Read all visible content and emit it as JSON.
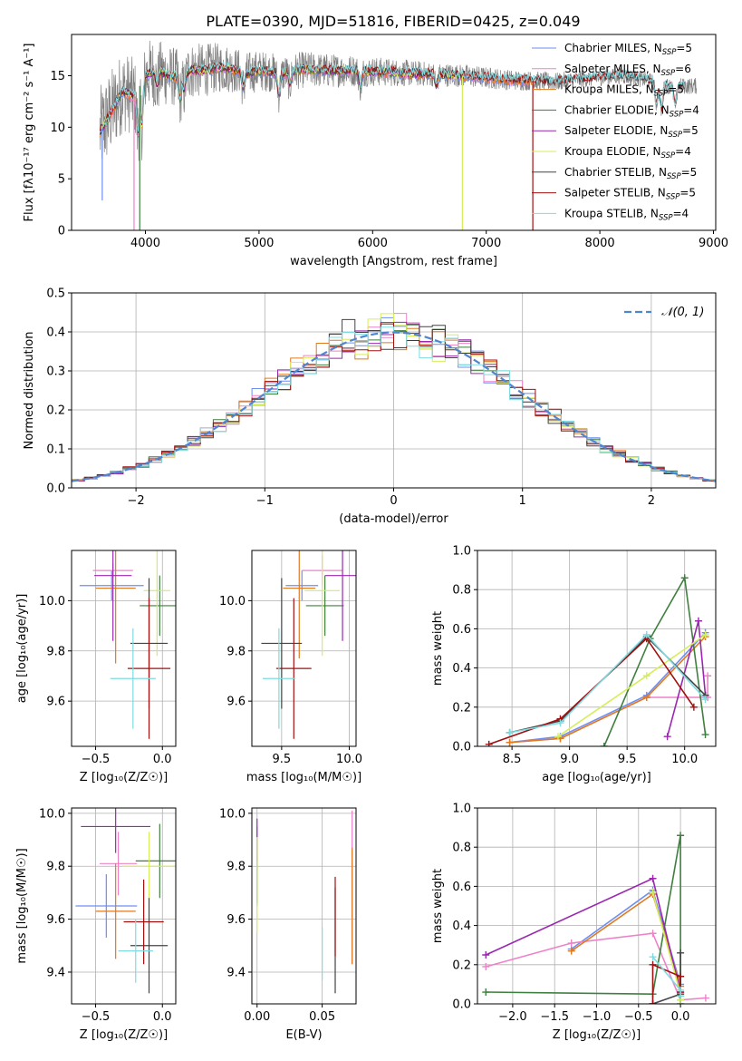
{
  "figure_title": "PLATE=0390, MJD=51816, FIBERID=0425, z=0.049",
  "palette": {
    "Chabrier MILES": "#6f8ef2",
    "Salpeter MILES": "#ee82c8",
    "Kroupa MILES": "#e07a1f",
    "Chabrier ELODIE": "#3f7f3f",
    "Salpeter ELODIE": "#9b27b0",
    "Kroupa ELODIE": "#d6ee5a",
    "Chabrier STELIB": "#444444",
    "Salpeter STELIB": "#a01010",
    "Kroupa STELIB": "#7fdbe0"
  },
  "chart_data": [
    {
      "id": "spectrum",
      "type": "line",
      "title": "PLATE=0390, MJD=51816, FIBERID=0425, z=0.049",
      "xlabel": "wavelength [Angstrom, rest frame]",
      "ylabel": "Flux [fλ10⁻¹⁷ erg cm⁻² s⁻¹ A⁻¹]",
      "xlim": [
        3350,
        9020
      ],
      "ylim": [
        0,
        19
      ],
      "xticks": [
        4000,
        5000,
        6000,
        7000,
        8000,
        9000
      ],
      "yticks": [
        0,
        5,
        10,
        15
      ],
      "grid": false,
      "legend_position": "right",
      "legend": [
        {
          "label": "Chabrier MILES, N",
          "sub": "SSP",
          "tail": "=5"
        },
        {
          "label": "Salpeter MILES, N",
          "sub": "SSP",
          "tail": "=6"
        },
        {
          "label": "Kroupa MILES, N",
          "sub": "SSP",
          "tail": "=5"
        },
        {
          "label": "Chabrier ELODIE, N",
          "sub": "SSP",
          "tail": "=4"
        },
        {
          "label": "Salpeter ELODIE, N",
          "sub": "SSP",
          "tail": "=5"
        },
        {
          "label": "Kroupa ELODIE, N",
          "sub": "SSP",
          "tail": "=4"
        },
        {
          "label": "Chabrier STELIB, N",
          "sub": "SSP",
          "tail": "=5"
        },
        {
          "label": "Salpeter STELIB, N",
          "sub": "SSP",
          "tail": "=5"
        },
        {
          "label": "Kroupa STELIB, N",
          "sub": "SSP",
          "tail": "=4"
        }
      ],
      "continuum": [
        [
          3600,
          9.5
        ],
        [
          3700,
          11.5
        ],
        [
          3800,
          13.5
        ],
        [
          3900,
          13.0
        ],
        [
          4000,
          15.0
        ],
        [
          4100,
          15.5
        ],
        [
          4200,
          15.0
        ],
        [
          4300,
          14.8
        ],
        [
          4400,
          15.5
        ],
        [
          4500,
          15.5
        ],
        [
          4600,
          15.7
        ],
        [
          4700,
          15.8
        ],
        [
          4800,
          15.5
        ],
        [
          4900,
          15.2
        ],
        [
          5000,
          15.5
        ],
        [
          5200,
          15.2
        ],
        [
          5400,
          15.6
        ],
        [
          5600,
          15.5
        ],
        [
          5800,
          15.5
        ],
        [
          6000,
          15.4
        ],
        [
          6200,
          15.3
        ],
        [
          6400,
          15.2
        ],
        [
          6600,
          15.1
        ],
        [
          6800,
          15.0
        ],
        [
          7000,
          14.8
        ],
        [
          7200,
          14.6
        ],
        [
          7400,
          14.5
        ],
        [
          7600,
          14.4
        ],
        [
          7800,
          14.6
        ],
        [
          8000,
          14.8
        ],
        [
          8200,
          15.0
        ],
        [
          8400,
          14.6
        ],
        [
          8600,
          14.0
        ],
        [
          8800,
          14.0
        ]
      ],
      "absorption_lines": [
        [
          3934,
          4.0
        ],
        [
          3969,
          4.0
        ],
        [
          4102,
          1.5
        ],
        [
          4304,
          2.0
        ],
        [
          4341,
          1.5
        ],
        [
          4861,
          1.5
        ],
        [
          5175,
          2.0
        ],
        [
          5270,
          1.2
        ],
        [
          5893,
          1.5
        ],
        [
          6563,
          1.0
        ],
        [
          8498,
          2.0
        ],
        [
          8542,
          2.5
        ],
        [
          8662,
          2.0
        ]
      ],
      "spikes": [
        [
          3900,
          -17
        ],
        [
          3950,
          -16
        ],
        [
          6790,
          -15
        ],
        [
          7410,
          -15
        ],
        [
          3620,
          -7
        ]
      ],
      "noise_amplitude": [
        [
          3600,
          4.5
        ],
        [
          4200,
          3.0
        ],
        [
          5000,
          2.0
        ],
        [
          6500,
          1.2
        ],
        [
          8000,
          0.8
        ],
        [
          8900,
          0.8
        ]
      ]
    },
    {
      "id": "residuals",
      "type": "histogram",
      "xlabel": "(data-model)/error",
      "ylabel": "Normed distribution",
      "xlim": [
        -2.5,
        2.5
      ],
      "ylim": [
        0,
        0.5
      ],
      "xticks": [
        -2,
        -1,
        0,
        1,
        2
      ],
      "yticks": [
        0,
        0.1,
        0.2,
        0.3,
        0.4,
        0.5
      ],
      "grid": true,
      "legend_position": "top-right",
      "reference_curve": {
        "label": "𝒩(0, 1)",
        "mean": 0,
        "sigma": 1
      },
      "bin_width": 0.1
    },
    {
      "id": "age-vs-metallicity",
      "type": "scatter",
      "xlabel": "Z [log₁₀(Z/Z☉)]",
      "ylabel": "age  [log₁₀(age/yr)]",
      "xlim": [
        -0.68,
        0.1
      ],
      "ylim": [
        9.42,
        10.2
      ],
      "xticks": [
        -0.5,
        0.0
      ],
      "yticks": [
        9.6,
        9.8,
        10.0
      ],
      "grid": true,
      "points": [
        {
          "model": "Chabrier MILES",
          "x": -0.38,
          "y": 10.06,
          "xerr": 0.24,
          "yerr": 0.06
        },
        {
          "model": "Salpeter MILES",
          "x": -0.37,
          "y": 10.12,
          "xerr": 0.15,
          "yerr": 0.03
        },
        {
          "model": "Kroupa MILES",
          "x": -0.35,
          "y": 10.05,
          "xerr": 0.15,
          "yerr": 0.3
        },
        {
          "model": "Chabrier ELODIE",
          "x": -0.02,
          "y": 9.98,
          "xerr": 0.15,
          "yerr": 0.12
        },
        {
          "model": "Salpeter ELODIE",
          "x": -0.37,
          "y": 10.1,
          "xerr": 0.14,
          "yerr": 0.26
        },
        {
          "model": "Kroupa ELODIE",
          "x": -0.04,
          "y": 10.04,
          "xerr": 0.1,
          "yerr": 0.26
        },
        {
          "model": "Chabrier STELIB",
          "x": -0.1,
          "y": 9.83,
          "xerr": 0.14,
          "yerr": 0.26
        },
        {
          "model": "Salpeter STELIB",
          "x": -0.1,
          "y": 9.73,
          "xerr": 0.16,
          "yerr": 0.28
        },
        {
          "model": "Kroupa STELIB",
          "x": -0.22,
          "y": 9.69,
          "xerr": 0.17,
          "yerr": 0.2
        }
      ]
    },
    {
      "id": "age-vs-mass",
      "type": "scatter",
      "xlabel": "mass [log₁₀(M/M☉)]",
      "ylabel": "",
      "xlim": [
        9.28,
        10.05
      ],
      "ylim": [
        9.42,
        10.2
      ],
      "xticks": [
        9.5,
        10.0
      ],
      "yticks": [
        9.6,
        9.8,
        10.0
      ],
      "grid": true,
      "points": [
        {
          "model": "Chabrier MILES",
          "x": 9.65,
          "y": 10.06,
          "xerr": 0.12,
          "yerr": 0.06
        },
        {
          "model": "Salpeter MILES",
          "x": 9.8,
          "y": 10.12,
          "xerr": 0.15,
          "yerr": 0.06
        },
        {
          "model": "Kroupa MILES",
          "x": 9.63,
          "y": 10.05,
          "xerr": 0.12,
          "yerr": 0.28
        },
        {
          "model": "Chabrier ELODIE",
          "x": 9.82,
          "y": 9.98,
          "xerr": 0.14,
          "yerr": 0.12
        },
        {
          "model": "Salpeter ELODIE",
          "x": 9.95,
          "y": 10.1,
          "xerr": 0.13,
          "yerr": 0.26
        },
        {
          "model": "Kroupa ELODIE",
          "x": 9.8,
          "y": 10.04,
          "xerr": 0.13,
          "yerr": 0.26
        },
        {
          "model": "Chabrier STELIB",
          "x": 9.5,
          "y": 9.83,
          "xerr": 0.15,
          "yerr": 0.26
        },
        {
          "model": "Salpeter STELIB",
          "x": 9.59,
          "y": 9.73,
          "xerr": 0.13,
          "yerr": 0.28
        },
        {
          "model": "Kroupa STELIB",
          "x": 9.48,
          "y": 9.69,
          "xerr": 0.12,
          "yerr": 0.2
        }
      ]
    },
    {
      "id": "mass-weight-vs-age",
      "type": "line",
      "xlabel": "age  [log₁₀(age/yr)]",
      "ylabel": "mass weight",
      "xlim": [
        8.2,
        10.27
      ],
      "ylim": [
        0,
        1.0
      ],
      "xticks": [
        8.5,
        9.0,
        9.5,
        10.0
      ],
      "yticks": [
        0.0,
        0.2,
        0.4,
        0.6,
        0.8,
        1.0
      ],
      "grid": true,
      "series": [
        {
          "model": "Chabrier MILES",
          "x": [
            8.48,
            8.92,
            9.67,
            10.18
          ],
          "y": [
            0.02,
            0.05,
            0.26,
            0.58
          ]
        },
        {
          "model": "Salpeter MILES",
          "x": [
            8.48,
            8.92,
            9.67,
            10.2,
            10.2
          ],
          "y": [
            0.02,
            0.04,
            0.25,
            0.25,
            0.36
          ]
        },
        {
          "model": "Kroupa MILES",
          "x": [
            8.48,
            8.92,
            9.67,
            10.18
          ],
          "y": [
            0.02,
            0.04,
            0.25,
            0.56
          ]
        },
        {
          "model": "Chabrier ELODIE",
          "x": [
            9.3,
            9.7,
            10.0,
            10.18
          ],
          "y": [
            0.0,
            0.55,
            0.86,
            0.06
          ]
        },
        {
          "model": "Salpeter ELODIE",
          "x": [
            9.85,
            10.12,
            10.18
          ],
          "y": [
            0.05,
            0.64,
            0.26
          ]
        },
        {
          "model": "Kroupa ELODIE",
          "x": [
            8.9,
            9.67,
            10.18
          ],
          "y": [
            0.05,
            0.36,
            0.57
          ]
        },
        {
          "model": "Chabrier STELIB",
          "x": [
            8.48,
            8.92,
            9.67,
            10.18
          ],
          "y": [
            0.07,
            0.13,
            0.56,
            0.26
          ]
        },
        {
          "model": "Salpeter STELIB",
          "x": [
            8.3,
            8.92,
            9.67,
            10.08
          ],
          "y": [
            0.01,
            0.14,
            0.55,
            0.2
          ]
        },
        {
          "model": "Kroupa STELIB",
          "x": [
            8.48,
            8.92,
            9.67,
            10.18
          ],
          "y": [
            0.07,
            0.12,
            0.57,
            0.24
          ]
        }
      ]
    },
    {
      "id": "mass-vs-metallicity",
      "type": "scatter",
      "xlabel": "Z [log₁₀(Z/Z☉)]",
      "ylabel": "mass [log₁₀(M/M☉)]",
      "xlim": [
        -0.68,
        0.1
      ],
      "ylim": [
        9.28,
        10.02
      ],
      "xticks": [
        -0.5,
        0.0
      ],
      "yticks": [
        9.4,
        9.6,
        9.8,
        10.0
      ],
      "grid": true,
      "points": [
        {
          "model": "Chabrier MILES",
          "x": -0.42,
          "y": 9.65,
          "xerr": 0.23,
          "yerr": 0.12
        },
        {
          "model": "Salpeter MILES",
          "x": -0.33,
          "y": 9.81,
          "xerr": 0.14,
          "yerr": 0.12
        },
        {
          "model": "Kroupa MILES",
          "x": -0.35,
          "y": 9.63,
          "xerr": 0.15,
          "yerr": 0.18
        },
        {
          "model": "Chabrier ELODIE",
          "x": -0.02,
          "y": 9.82,
          "xerr": 0.18,
          "yerr": 0.14
        },
        {
          "model": "Salpeter ELODIE",
          "x": -0.35,
          "y": 9.95,
          "xerr": 0.26,
          "yerr": 0.1
        },
        {
          "model": "Kroupa ELODIE",
          "x": -0.1,
          "y": 9.8,
          "xerr": 0.2,
          "yerr": 0.13
        },
        {
          "model": "Chabrier STELIB",
          "x": -0.1,
          "y": 9.5,
          "xerr": 0.14,
          "yerr": 0.18
        },
        {
          "model": "Salpeter STELIB",
          "x": -0.14,
          "y": 9.59,
          "xerr": 0.15,
          "yerr": 0.16
        },
        {
          "model": "Kroupa STELIB",
          "x": -0.2,
          "y": 9.48,
          "xerr": 0.13,
          "yerr": 0.12
        }
      ]
    },
    {
      "id": "mass-vs-ebv",
      "type": "scatter",
      "xlabel": "E(B-V)",
      "ylabel": "",
      "xlim": [
        -0.004,
        0.076
      ],
      "ylim": [
        9.28,
        10.02
      ],
      "xticks": [
        0.0,
        0.05
      ],
      "xticklabels": [
        "0.00",
        "0.05"
      ],
      "yticks": [
        9.4,
        9.6,
        9.8,
        10.0
      ],
      "grid": true,
      "points": [
        {
          "model": "Chabrier MILES",
          "x": 0.0,
          "y": 9.8,
          "xerr": 0.0,
          "yerr": 0.15
        },
        {
          "model": "Salpeter MILES",
          "x": 0.073,
          "y": 9.72,
          "xerr": 0.0,
          "yerr": 0.29
        },
        {
          "model": "Kroupa MILES",
          "x": 0.073,
          "y": 9.65,
          "xerr": 0.0,
          "yerr": 0.22
        },
        {
          "model": "Chabrier ELODIE",
          "x": 0.0,
          "y": 9.78,
          "xerr": 0.0,
          "yerr": 0.12
        },
        {
          "model": "Salpeter ELODIE",
          "x": 0.0,
          "y": 9.9,
          "xerr": 0.0,
          "yerr": 0.08
        },
        {
          "model": "Kroupa ELODIE",
          "x": 0.0,
          "y": 9.73,
          "xerr": 0.0,
          "yerr": 0.18
        },
        {
          "model": "Chabrier STELIB",
          "x": 0.06,
          "y": 9.52,
          "xerr": 0.0,
          "yerr": 0.2
        },
        {
          "model": "Salpeter STELIB",
          "x": 0.06,
          "y": 9.61,
          "xerr": 0.0,
          "yerr": 0.15
        },
        {
          "model": "Kroupa STELIB",
          "x": 0.05,
          "y": 9.47,
          "xerr": 0.0,
          "yerr": 0.1
        }
      ]
    },
    {
      "id": "mass-weight-vs-metallicity",
      "type": "line",
      "xlabel": "Z [log₁₀(Z/Z☉)]",
      "ylabel": "mass weight",
      "xlim": [
        -2.42,
        0.42
      ],
      "ylim": [
        0,
        1.0
      ],
      "xticks": [
        -2.0,
        -1.5,
        -1.0,
        -0.5,
        0.0
      ],
      "yticks": [
        0.0,
        0.2,
        0.4,
        0.6,
        0.8,
        1.0
      ],
      "grid": true,
      "series": [
        {
          "model": "Chabrier MILES",
          "x": [
            -1.3,
            -0.33,
            0.0,
            0.0
          ],
          "y": [
            0.28,
            0.58,
            0.1,
            0.04
          ]
        },
        {
          "model": "Salpeter MILES",
          "x": [
            -2.32,
            -1.3,
            -0.33,
            0.0,
            0.3
          ],
          "y": [
            0.19,
            0.31,
            0.36,
            0.02,
            0.03
          ]
        },
        {
          "model": "Kroupa MILES",
          "x": [
            -1.3,
            -0.33,
            0.0,
            0.0
          ],
          "y": [
            0.27,
            0.56,
            0.09,
            0.02
          ]
        },
        {
          "model": "Chabrier ELODIE",
          "x": [
            -2.32,
            -0.33,
            0.0,
            0.0
          ],
          "y": [
            0.06,
            0.05,
            0.86,
            0.0
          ]
        },
        {
          "model": "Salpeter ELODIE",
          "x": [
            -2.32,
            -0.33,
            0.0
          ],
          "y": [
            0.25,
            0.64,
            0.06
          ]
        },
        {
          "model": "Kroupa ELODIE",
          "x": [
            -0.33,
            0.0,
            0.0
          ],
          "y": [
            0.57,
            0.05,
            0.02
          ]
        },
        {
          "model": "Chabrier STELIB",
          "x": [
            -0.33,
            0.0,
            0.0
          ],
          "y": [
            0.0,
            0.05,
            0.26
          ]
        },
        {
          "model": "Salpeter STELIB",
          "x": [
            -0.33,
            -0.33,
            0.0,
            0.0
          ],
          "y": [
            0.0,
            0.2,
            0.14,
            0.06
          ]
        },
        {
          "model": "Kroupa STELIB",
          "x": [
            -0.33,
            0.0,
            0.0
          ],
          "y": [
            0.24,
            0.07,
            0.04
          ]
        }
      ]
    }
  ]
}
